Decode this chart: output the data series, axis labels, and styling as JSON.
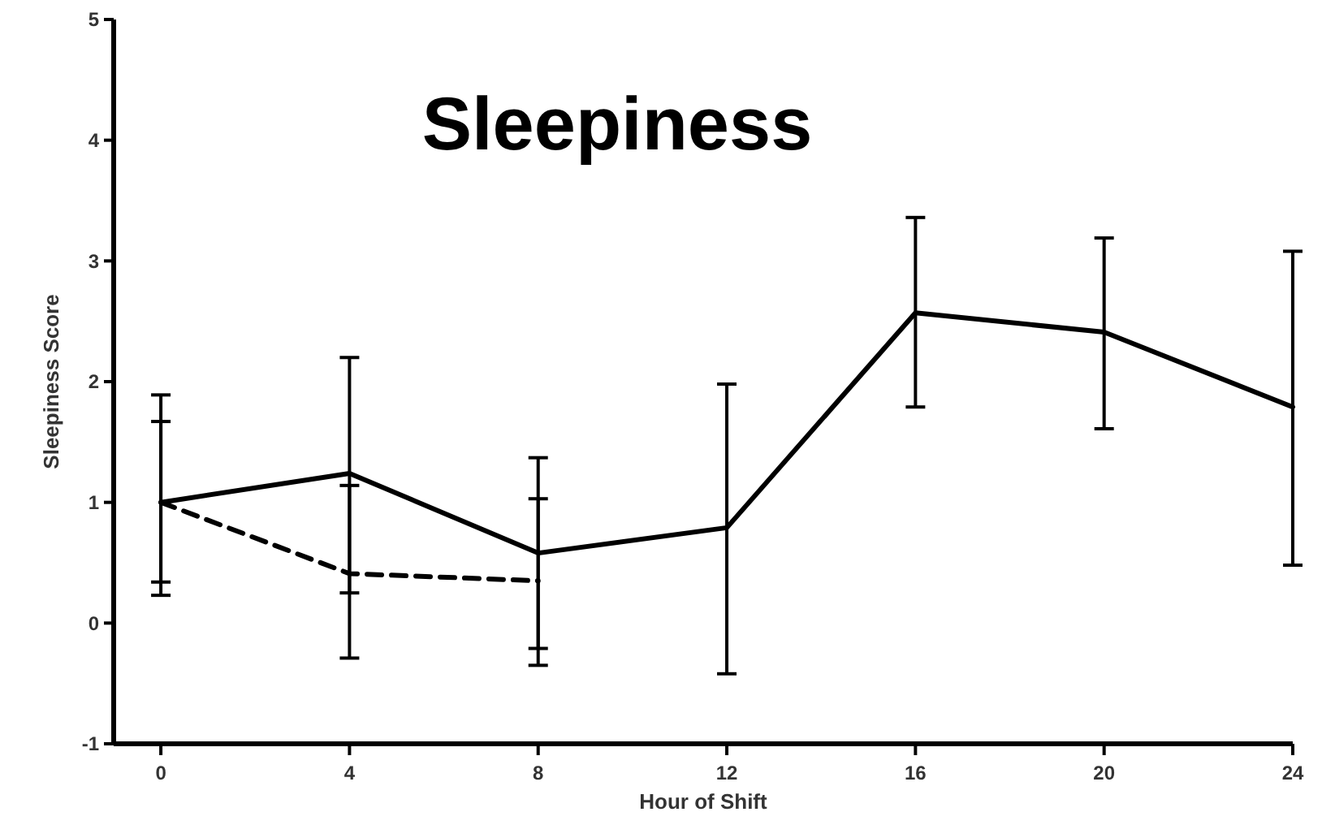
{
  "chart_data": {
    "type": "line",
    "title": "Sleepiness",
    "xlabel": "Hour of Shift",
    "ylabel": "Sleepiness Score",
    "xlim": [
      -1,
      24
    ],
    "xticks": [
      0,
      4,
      8,
      12,
      16,
      20,
      24
    ],
    "ylim": [
      -1,
      5
    ],
    "yticks": [
      -1,
      0,
      1,
      2,
      3,
      4,
      5
    ],
    "grid": false,
    "marker": "none",
    "series": [
      {
        "color": "#000000",
        "line_style": "solid",
        "x": [
          0,
          4,
          8,
          12,
          16,
          20,
          24
        ],
        "values": [
          1.0,
          1.24,
          0.58,
          0.79,
          2.57,
          2.41,
          1.79
        ],
        "errors": [
          [
            0.23,
            1.89
          ],
          [
            -0.29,
            2.2
          ],
          [
            -0.35,
            1.37
          ],
          [
            -0.42,
            1.98
          ],
          [
            1.79,
            3.36
          ],
          [
            1.61,
            3.19
          ],
          [
            0.48,
            3.08
          ]
        ]
      },
      {
        "color": "#000000",
        "line_style": "dashed",
        "x": [
          0,
          4,
          8
        ],
        "values": [
          1.0,
          0.41,
          0.35
        ],
        "errors": [
          [
            0.34,
            1.67
          ],
          [
            0.25,
            1.14
          ],
          [
            -0.21,
            1.03
          ]
        ]
      }
    ]
  }
}
